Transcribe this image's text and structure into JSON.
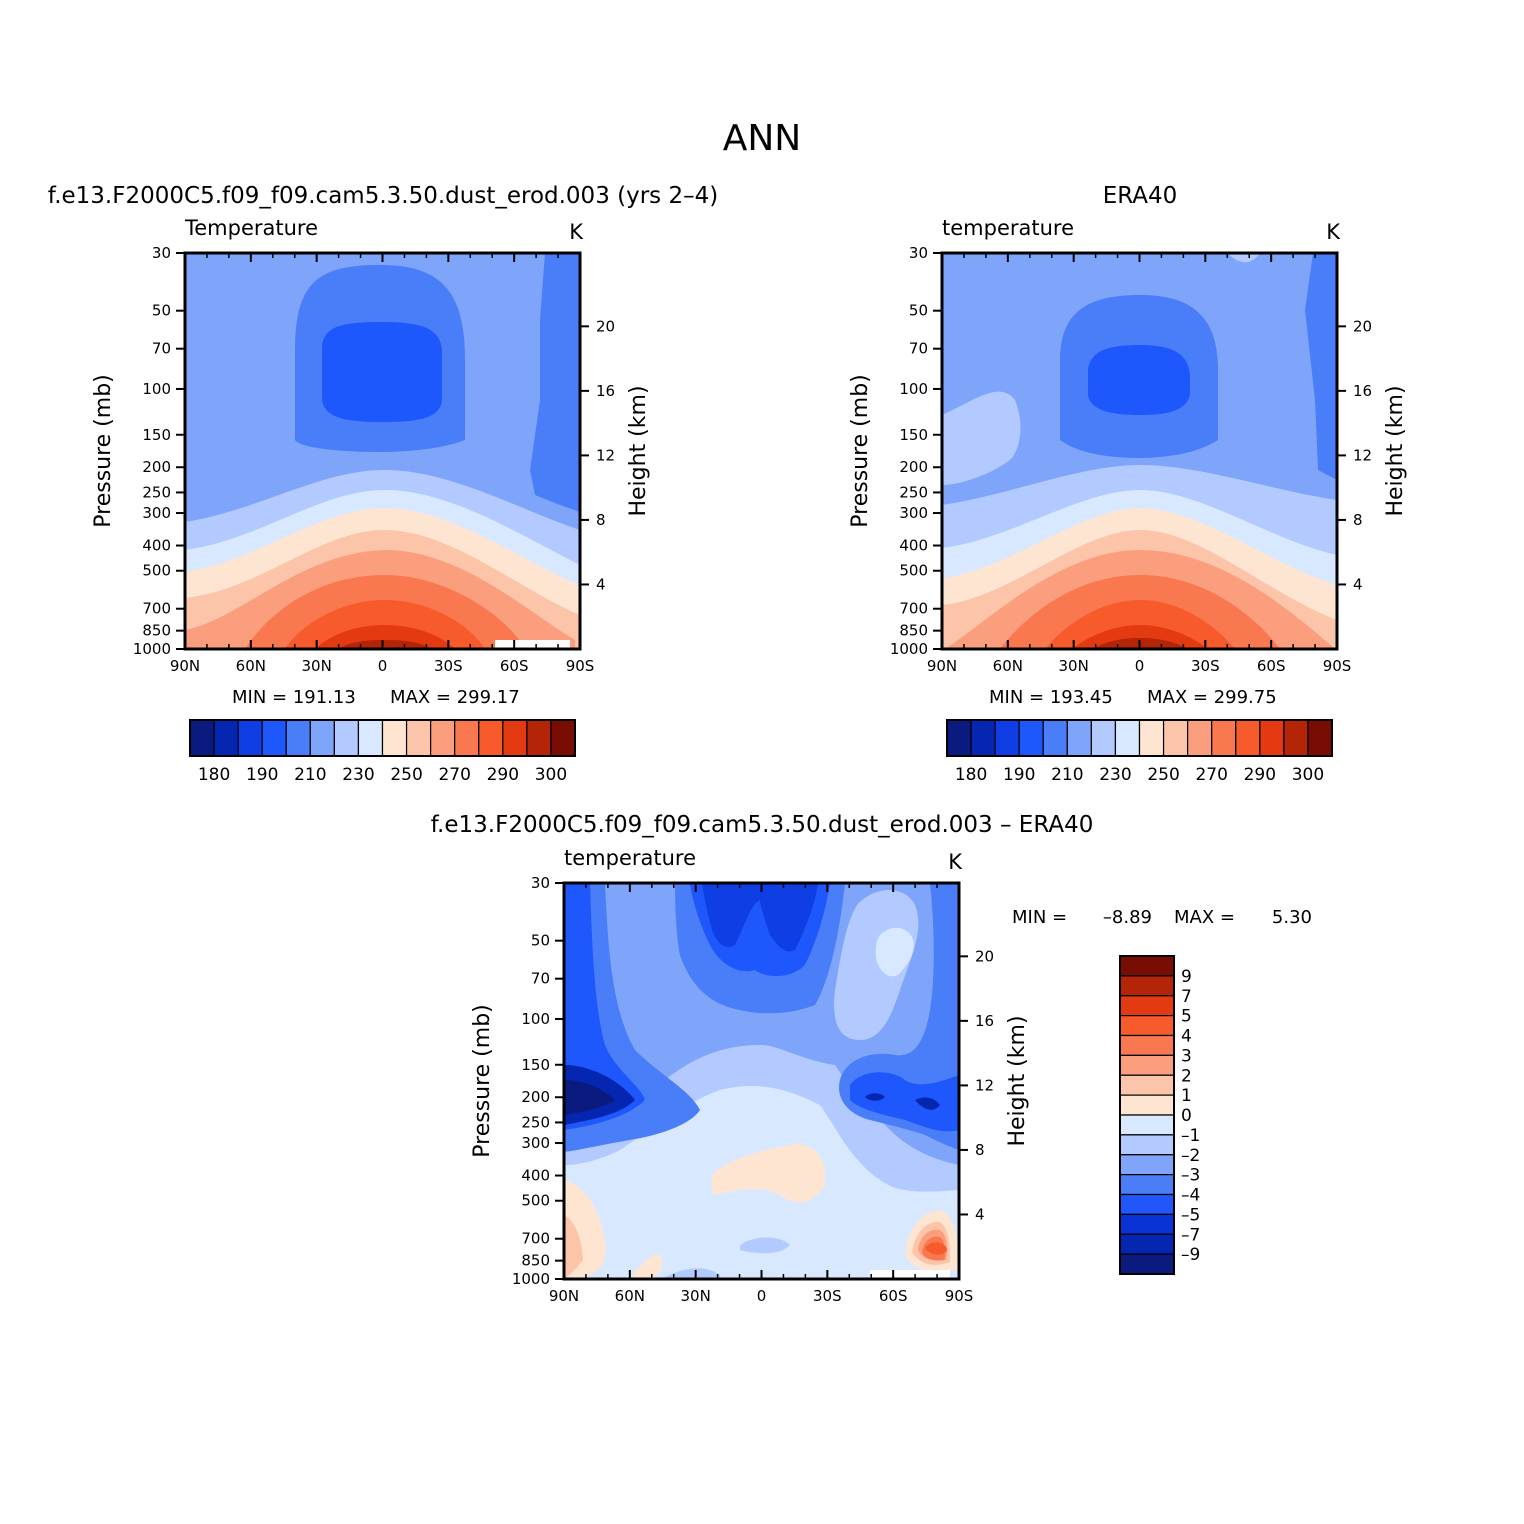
{
  "figure_title": "ANN",
  "colors": {
    "model_palette": [
      "#0a1a7e",
      "#0526b0",
      "#0f3fe4",
      "#1e57fb",
      "#4a7ef8",
      "#7fa5fb",
      "#b2caff",
      "#d8e8ff",
      "#fde5d2",
      "#fcc4a8",
      "#fa9e7d",
      "#f97850",
      "#f75a2b",
      "#e33a12",
      "#b42407",
      "#7a0d03"
    ],
    "diff_palette": [
      "#0a1a7e",
      "#0526b0",
      "#0a33d6",
      "#2157fa",
      "#4a7ef8",
      "#7fa5fb",
      "#b2caff",
      "#d8e8ff",
      "#fde5d2",
      "#fcc4a8",
      "#fa9e7d",
      "#f97850",
      "#f75a2b",
      "#e33a12",
      "#b42407",
      "#7a0d03"
    ]
  },
  "chart_data": [
    {
      "id": "model",
      "type": "heatmap",
      "panel_title": "f.e13.F2000C5.f09_f09.cam5.3.50.dust_erod.003 (yrs 2–4)",
      "variable_label": "Temperature",
      "units_label": "K",
      "ylabel": "Pressure (mb)",
      "y2label": "Height (km)",
      "x_ticks": [
        "90N",
        "60N",
        "30N",
        "0",
        "30S",
        "60S",
        "90S"
      ],
      "y_ticks": [
        "30",
        "50",
        "70",
        "100",
        "150",
        "200",
        "250",
        "300",
        "400",
        "500",
        "700",
        "850",
        "1000"
      ],
      "y_tick_values": [
        30,
        50,
        70,
        100,
        150,
        200,
        250,
        300,
        400,
        500,
        700,
        850,
        1000
      ],
      "y2_ticks": [
        "20",
        "16",
        "12",
        "8",
        "4"
      ],
      "y2_tick_values": [
        20,
        16,
        12,
        8,
        4
      ],
      "min_label": "MIN = 191.13",
      "max_label": "MAX = 299.17",
      "min": 191.13,
      "max": 299.17,
      "colorbar_labels": [
        "180",
        "190",
        "210",
        "230",
        "250",
        "270",
        "290",
        "300"
      ],
      "colorbar_levels": [
        180,
        185,
        190,
        200,
        210,
        220,
        230,
        240,
        250,
        260,
        270,
        280,
        290,
        295,
        300
      ]
    },
    {
      "id": "obs",
      "type": "heatmap",
      "panel_title": "ERA40",
      "variable_label": "temperature",
      "units_label": "K",
      "ylabel": "Pressure (mb)",
      "y2label": "Height (km)",
      "x_ticks": [
        "90N",
        "60N",
        "30N",
        "0",
        "30S",
        "60S",
        "90S"
      ],
      "y_ticks": [
        "30",
        "50",
        "70",
        "100",
        "150",
        "200",
        "250",
        "300",
        "400",
        "500",
        "700",
        "850",
        "1000"
      ],
      "y_tick_values": [
        30,
        50,
        70,
        100,
        150,
        200,
        250,
        300,
        400,
        500,
        700,
        850,
        1000
      ],
      "y2_ticks": [
        "20",
        "16",
        "12",
        "8",
        "4"
      ],
      "y2_tick_values": [
        20,
        16,
        12,
        8,
        4
      ],
      "min_label": "MIN = 193.45",
      "max_label": "MAX = 299.75",
      "min": 193.45,
      "max": 299.75,
      "colorbar_labels": [
        "180",
        "190",
        "210",
        "230",
        "250",
        "270",
        "290",
        "300"
      ],
      "colorbar_levels": [
        180,
        185,
        190,
        200,
        210,
        220,
        230,
        240,
        250,
        260,
        270,
        280,
        290,
        295,
        300
      ]
    },
    {
      "id": "diff",
      "type": "heatmap",
      "panel_title": "f.e13.F2000C5.f09_f09.cam5.3.50.dust_erod.003 – ERA40",
      "variable_label": "temperature",
      "units_label": "K",
      "ylabel": "Pressure (mb)",
      "y2label": "Height (km)",
      "x_ticks": [
        "90N",
        "60N",
        "30N",
        "0",
        "30S",
        "60S",
        "90S"
      ],
      "y_ticks": [
        "30",
        "50",
        "70",
        "100",
        "150",
        "200",
        "250",
        "300",
        "400",
        "500",
        "700",
        "850",
        "1000"
      ],
      "y_tick_values": [
        30,
        50,
        70,
        100,
        150,
        200,
        250,
        300,
        400,
        500,
        700,
        850,
        1000
      ],
      "y2_ticks": [
        "20",
        "16",
        "12",
        "8",
        "4"
      ],
      "y2_tick_values": [
        20,
        16,
        12,
        8,
        4
      ],
      "min_label": "MIN =",
      "min_value": "–8.89",
      "max_label": "MAX =",
      "max_value": "5.30",
      "min": -8.89,
      "max": 5.3,
      "colorbar_labels": [
        "9",
        "7",
        "5",
        "4",
        "3",
        "2",
        "1",
        "0",
        "–1",
        "–2",
        "–3",
        "–4",
        "–5",
        "–7",
        "–9"
      ],
      "colorbar_levels": [
        9,
        7,
        5,
        4,
        3,
        2,
        1,
        0,
        -1,
        -2,
        -3,
        -4,
        -5,
        -7,
        -9
      ]
    }
  ]
}
